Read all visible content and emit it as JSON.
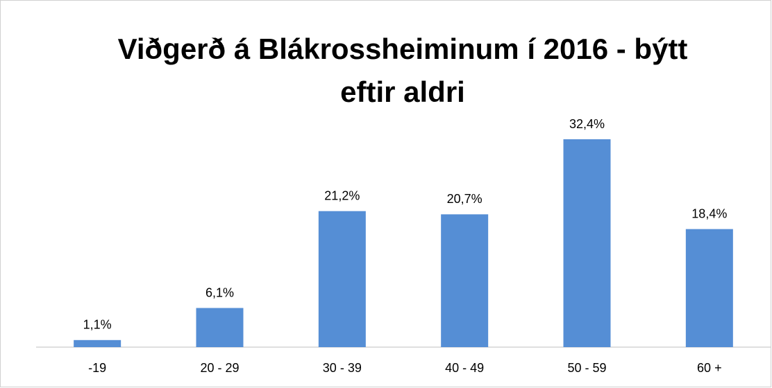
{
  "chart_data": {
    "type": "bar",
    "title": "Viðgerð á Blákrossheiminum í 2016 - býtt eftir aldri",
    "categories": [
      "-19",
      "20 - 29",
      "30 - 39",
      "40 - 49",
      "50 - 59",
      "60 +"
    ],
    "values": [
      1.1,
      6.1,
      21.2,
      20.7,
      32.4,
      18.4
    ],
    "value_labels": [
      "1,1%",
      "6,1%",
      "21,2%",
      "20,7%",
      "32,4%",
      "18,4%"
    ],
    "color": "#558ed5"
  }
}
